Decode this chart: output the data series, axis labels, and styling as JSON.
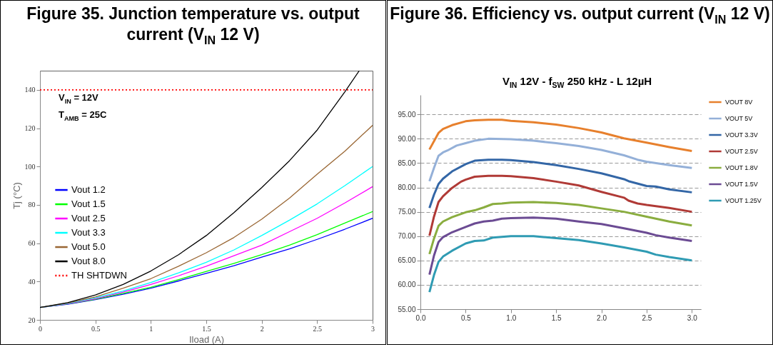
{
  "chart_data": [
    {
      "type": "line",
      "title": "Figure 35. Junction temperature vs. output current (V$_{IN}$ 12 V)",
      "xlabel": "Iload (A)",
      "ylabel": "Tj (°C)",
      "x": [
        0,
        0.25,
        0.5,
        0.75,
        1,
        1.25,
        1.5,
        1.75,
        2,
        2.25,
        2.5,
        2.75,
        3
      ],
      "series": [
        {
          "name": "Vout 1.2",
          "color": "#0000ff",
          "values": [
            26.5,
            28.2,
            30.6,
            33.4,
            36.5,
            40.3,
            44.3,
            48.3,
            52.7,
            57,
            62,
            67.3,
            73
          ]
        },
        {
          "name": "Vout 1.5",
          "color": "#00ff00",
          "values": [
            26.5,
            28.3,
            30.8,
            33.8,
            37,
            41,
            45.3,
            49.5,
            54,
            59,
            64.5,
            70.5,
            76.5
          ]
        },
        {
          "name": "Vout 2.5",
          "color": "#ff00ff",
          "values": [
            26.5,
            28.4,
            31,
            34.5,
            38.5,
            43,
            48,
            53.5,
            59,
            66,
            73,
            81,
            89.5
          ]
        },
        {
          "name": "Vout 3.3",
          "color": "#00ffff",
          "values": [
            26.5,
            28.6,
            31.5,
            35,
            39.5,
            44.5,
            50,
            56.5,
            64,
            72,
            80.5,
            90,
            100
          ]
        },
        {
          "name": "Vout 5.0",
          "color": "#996633",
          "values": [
            26.5,
            28.8,
            32,
            36.5,
            41.5,
            48,
            55,
            63,
            72.5,
            83.5,
            96,
            108,
            121.5
          ]
        },
        {
          "name": "Vout 8.0",
          "color": "#000000",
          "x": [
            0,
            0.25,
            0.5,
            0.75,
            1,
            1.25,
            1.5,
            1.75,
            2,
            2.25,
            2.5,
            2.75,
            2.88
          ],
          "values": [
            26.5,
            29,
            33,
            38.5,
            45.5,
            54,
            64,
            76,
            89,
            103,
            119,
            139,
            150
          ]
        }
      ],
      "ref_lines": [
        {
          "axis": "y",
          "value": 140,
          "label": "TH SHTDWN",
          "color": "#ff0000",
          "line_style": "dotted"
        }
      ],
      "annotations": [
        "V$_{IN}$ = 12V",
        "T$_{AMB}$ = 25C"
      ],
      "xlim": [
        0,
        3
      ],
      "xticks": [
        0,
        0.5,
        1,
        1.5,
        2,
        2.5,
        3
      ],
      "ylim": [
        20,
        150
      ],
      "yticks": [
        20,
        40,
        60,
        80,
        100,
        120,
        140
      ],
      "legend": "left",
      "line_style": "solid"
    },
    {
      "type": "line",
      "title": "Figure 36. Efficiency vs. output current (V$_{IN}$ 12 V)",
      "subtitle": "V$_{IN}$ 12V - f$_{SW}$ 250 kHz - L 12µH",
      "series": [
        {
          "name": "VOUT 8V",
          "color": "#e7802d",
          "x": [
            0.1,
            0.2,
            0.25,
            0.35,
            0.5,
            0.6,
            0.75,
            0.9,
            1.0,
            1.25,
            1.5,
            1.75,
            2.0,
            2.25,
            2.5,
            2.75,
            3.0
          ],
          "values": [
            87.8,
            91.2,
            92,
            92.8,
            93.6,
            93.8,
            93.9,
            93.9,
            93.7,
            93.4,
            92.9,
            92.2,
            91.3,
            90.1,
            89.2,
            88.3,
            87.5
          ]
        },
        {
          "name": "VOUT 5V",
          "color": "#94b0d8",
          "x": [
            0.1,
            0.15,
            0.2,
            0.25,
            0.3,
            0.4,
            0.5,
            0.6,
            0.75,
            1.0,
            1.25,
            1.5,
            1.75,
            2.0,
            2.25,
            2.4,
            2.5,
            2.75,
            3.0
          ],
          "values": [
            81.3,
            84,
            86.5,
            87.2,
            87.6,
            88.6,
            89.1,
            89.6,
            90,
            89.9,
            89.6,
            89.1,
            88.5,
            87.7,
            86.6,
            85.7,
            85.3,
            84.6,
            84
          ]
        },
        {
          "name": "VOUT 3.3V",
          "color": "#3366a6",
          "x": [
            0.1,
            0.15,
            0.2,
            0.25,
            0.35,
            0.5,
            0.6,
            0.75,
            0.9,
            1.0,
            1.25,
            1.5,
            1.75,
            2.0,
            2.25,
            2.3,
            2.5,
            2.6,
            2.75,
            3.0
          ],
          "values": [
            75.8,
            78.5,
            80.7,
            81.8,
            83.3,
            84.8,
            85.5,
            85.7,
            85.7,
            85.6,
            85.2,
            84.6,
            83.8,
            82.9,
            81.7,
            81.3,
            80.3,
            80.2,
            79.6,
            79
          ]
        },
        {
          "name": "VOUT 2.5V",
          "color": "#b03a36",
          "x": [
            0.1,
            0.15,
            0.2,
            0.25,
            0.35,
            0.45,
            0.5,
            0.6,
            0.75,
            0.9,
            1.0,
            1.25,
            1.5,
            1.75,
            2.0,
            2.25,
            2.3,
            2.4,
            2.5,
            2.75,
            3.0
          ],
          "values": [
            70.1,
            74,
            77,
            78.2,
            79.9,
            81.2,
            81.6,
            82.2,
            82.4,
            82.4,
            82.3,
            81.9,
            81.2,
            80.4,
            79.1,
            77.9,
            77.3,
            76.7,
            76.4,
            75.8,
            75
          ]
        },
        {
          "name": "VOUT 1.8V",
          "color": "#8aad3f",
          "x": [
            0.1,
            0.15,
            0.2,
            0.25,
            0.35,
            0.5,
            0.6,
            0.7,
            0.8,
            0.9,
            1.0,
            1.25,
            1.5,
            1.75,
            2.0,
            2.25,
            2.5,
            2.75,
            3.0
          ],
          "values": [
            66.3,
            69.5,
            72.1,
            73,
            73.9,
            74.9,
            75.3,
            75.9,
            76.6,
            76.7,
            76.9,
            77,
            76.8,
            76.4,
            75.7,
            75,
            74,
            73,
            72.2
          ]
        },
        {
          "name": "VOUT 1.5V",
          "color": "#6b4b93",
          "x": [
            0.1,
            0.15,
            0.2,
            0.25,
            0.35,
            0.5,
            0.6,
            0.7,
            0.8,
            0.9,
            1.0,
            1.25,
            1.5,
            1.75,
            2.0,
            2.25,
            2.5,
            2.6,
            2.75,
            3.0
          ],
          "values": [
            62.1,
            66,
            68.8,
            69.8,
            70.8,
            71.9,
            72.6,
            73,
            73.2,
            73.6,
            73.7,
            73.8,
            73.6,
            73,
            72.5,
            71.6,
            70.7,
            70.2,
            69.7,
            69
          ]
        },
        {
          "name": "VOUT 1.25V",
          "color": "#2f9bb3",
          "x": [
            0.1,
            0.15,
            0.2,
            0.25,
            0.35,
            0.5,
            0.6,
            0.7,
            0.8,
            1.0,
            1.25,
            1.5,
            1.75,
            2.0,
            2.25,
            2.5,
            2.6,
            2.75,
            3.0
          ],
          "values": [
            58.5,
            62,
            64.7,
            65.8,
            67,
            68.5,
            69,
            69.1,
            69.7,
            70,
            70,
            69.6,
            69.2,
            68.5,
            67.7,
            66.8,
            66.2,
            65.7,
            65
          ]
        }
      ],
      "xlim": [
        0,
        3.1
      ],
      "xticks": [
        {
          "value": 0,
          "label": "0.0"
        },
        {
          "value": 0.5,
          "label": "0.5"
        },
        {
          "value": 1,
          "label": "1.0"
        },
        {
          "value": 1.5,
          "label": "1.5"
        },
        {
          "value": 2,
          "label": "2.0"
        },
        {
          "value": 2.5,
          "label": "2.5"
        },
        {
          "value": 3,
          "label": "3.0"
        }
      ],
      "ylim": [
        55,
        99
      ],
      "yticks": [
        {
          "value": 55,
          "label": "55.00"
        },
        {
          "value": 60,
          "label": "60.00"
        },
        {
          "value": 65,
          "label": "65.00"
        },
        {
          "value": 70,
          "label": "70.00"
        },
        {
          "value": 75,
          "label": "75.00"
        },
        {
          "value": 80,
          "label": "80.00"
        },
        {
          "value": 85,
          "label": "85.00"
        },
        {
          "value": 90,
          "label": "90.00"
        },
        {
          "value": 95,
          "label": "95.00"
        }
      ],
      "grid": "y",
      "legend": "right",
      "line_style": "solid"
    }
  ]
}
